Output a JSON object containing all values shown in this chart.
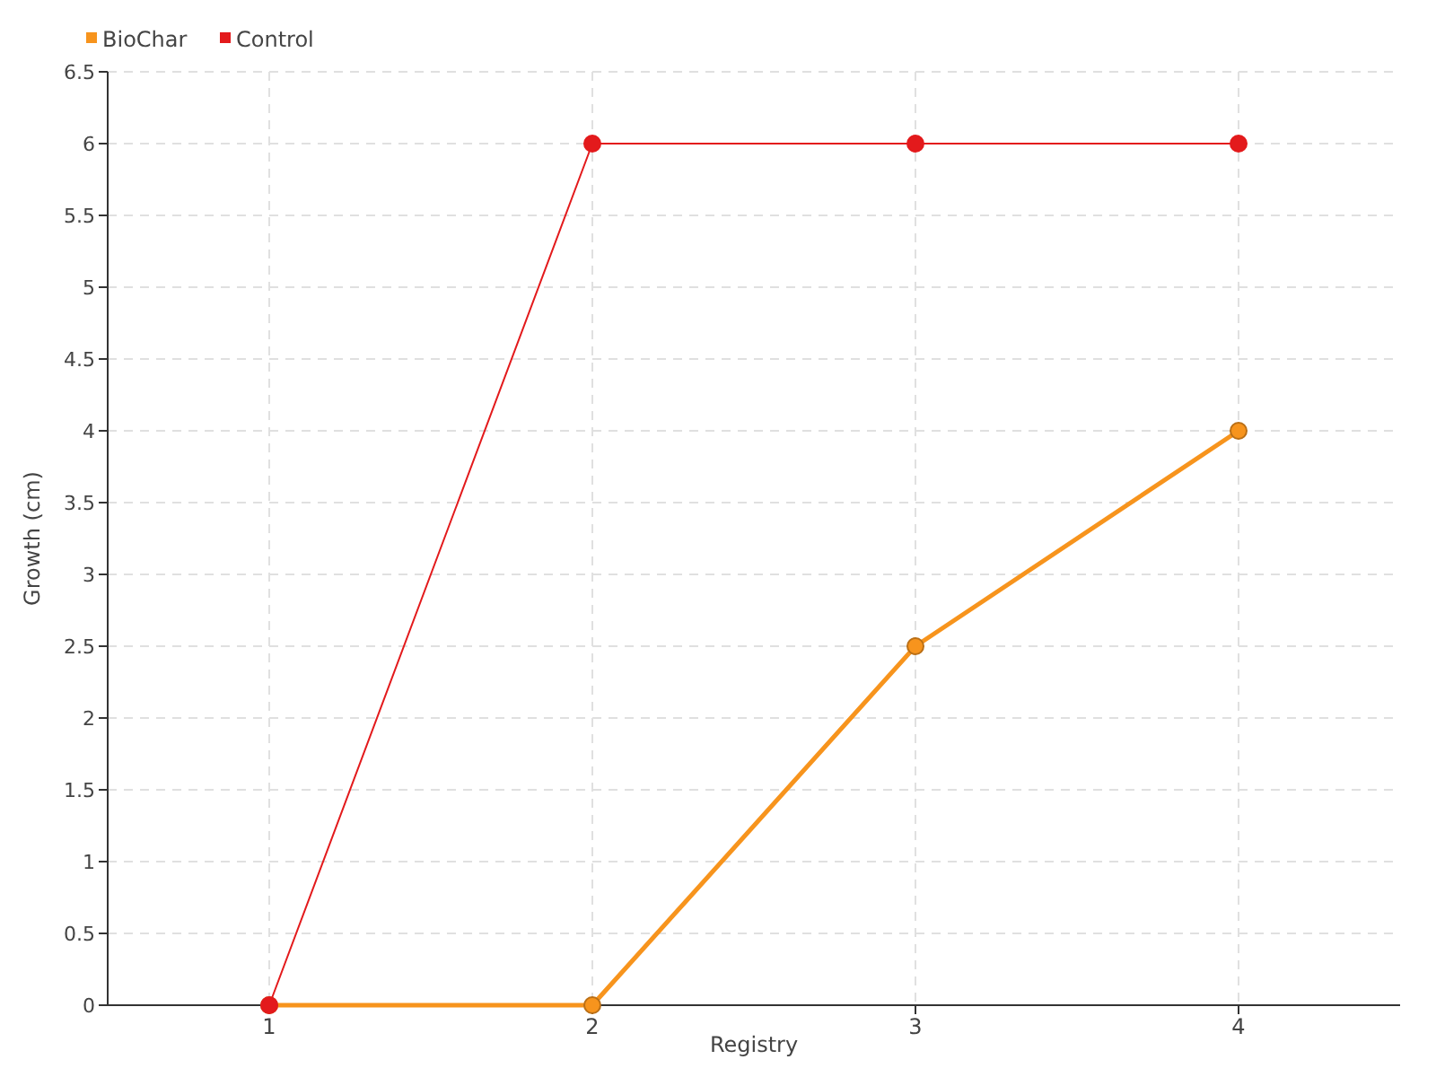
{
  "chart_data": {
    "type": "line",
    "xlabel": "Registry",
    "ylabel": "Growth (cm)",
    "categories": [
      "1",
      "2",
      "3",
      "4"
    ],
    "series": [
      {
        "name": "BioChar",
        "color": "#f7941d",
        "values": [
          0,
          0,
          2.5,
          4
        ]
      },
      {
        "name": "Control",
        "color": "#e31a1c",
        "values": [
          0,
          6,
          6,
          6
        ]
      }
    ],
    "ylim": [
      0,
      6.5
    ],
    "yticks": [
      0,
      0.5,
      1,
      1.5,
      2,
      2.5,
      3,
      3.5,
      4,
      4.5,
      5,
      5.5,
      6,
      6.5
    ],
    "grid": true,
    "legend": "top left",
    "marker": "circle",
    "line_style": "solid"
  }
}
